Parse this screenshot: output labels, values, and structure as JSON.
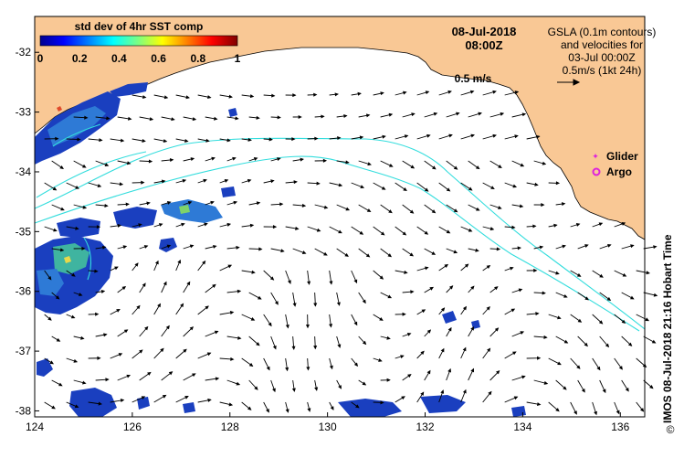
{
  "map": {
    "date": "08-Jul-2018",
    "time": "08:00Z",
    "legend_info": {
      "line1": "GSLA (0.1m contours)",
      "line2": "and velocities for",
      "line3": "03-Jul 00:00Z",
      "line4": "0.5m/s (1kt 24h)"
    },
    "arrow_scale_label": "0.5 m/s",
    "colorbar": {
      "title": "std dev of 4hr SST comp",
      "ticks": [
        "0",
        "0.2",
        "0.4",
        "0.6",
        "0.8",
        "1"
      ],
      "range": [
        0,
        1
      ]
    },
    "markers": [
      {
        "label": "Glider",
        "color": "#dd22dd"
      },
      {
        "label": "Argo",
        "color": "#dd22dd"
      }
    ],
    "lon_ticks": [
      "124",
      "126",
      "128",
      "130",
      "132",
      "134",
      "136"
    ],
    "lat_ticks": [
      "-32",
      "-33",
      "-34",
      "-35",
      "-36",
      "-37",
      "-38"
    ],
    "lon_range": [
      124,
      136.5
    ],
    "lat_range": [
      -38.1,
      -31.4
    ],
    "credit": "IMOS 08-Jul-2018 21:16 Hobart Time",
    "copyright": "©",
    "colors": {
      "land": "#f9c895",
      "ocean": "#ffffff",
      "contour": "#33dddd",
      "arrow": "#000000"
    }
  }
}
